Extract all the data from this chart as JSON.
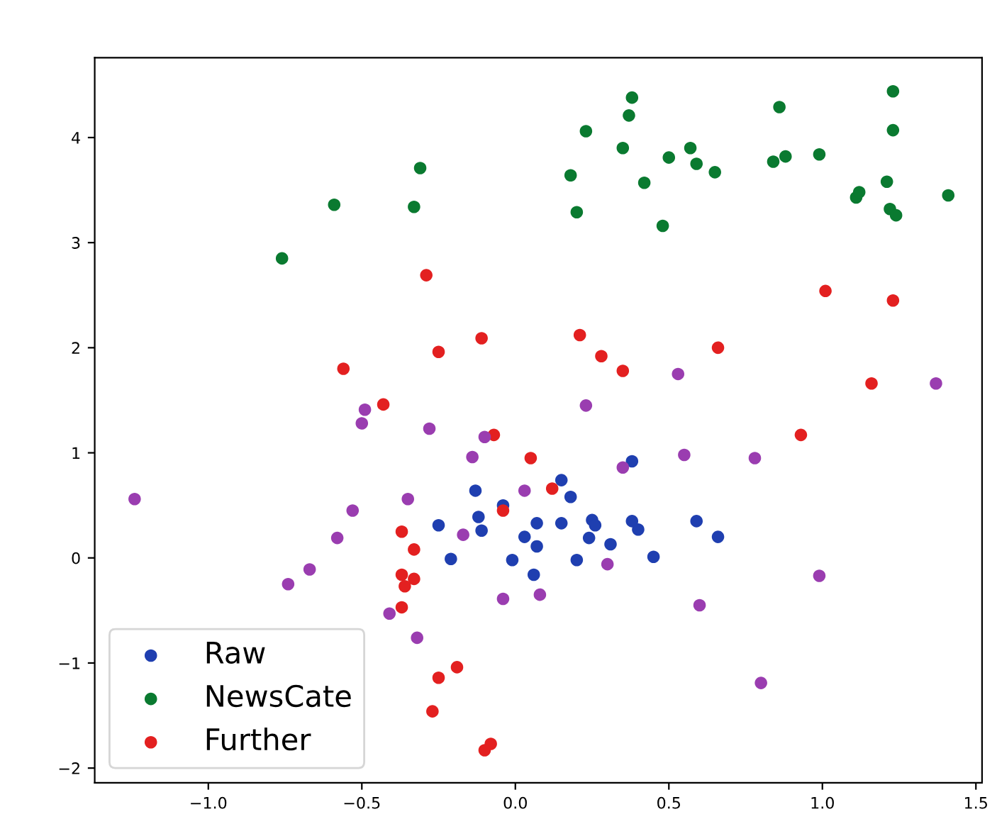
{
  "chart_data": {
    "type": "scatter",
    "marker": "circle",
    "legend": "bottom left",
    "grid": false,
    "xlim": [
      -1.37,
      1.52
    ],
    "ylim": [
      -2.14,
      4.76
    ],
    "xticks": [
      {
        "value": -1.0,
        "label": "−1.0"
      },
      {
        "value": -0.5,
        "label": "−0.5"
      },
      {
        "value": 0.0,
        "label": "0.0"
      },
      {
        "value": 0.5,
        "label": "0.5"
      },
      {
        "value": 1.0,
        "label": "1.0"
      },
      {
        "value": 1.5,
        "label": "1.5"
      }
    ],
    "yticks": [
      {
        "value": -2,
        "label": "−2"
      },
      {
        "value": -1,
        "label": "−1"
      },
      0,
      1,
      2,
      3,
      4
    ],
    "series": [
      {
        "name": "Raw",
        "color": "#1f3fb0",
        "x": [
          -0.13,
          -0.12,
          -0.11,
          -0.25,
          -0.21,
          -0.04,
          -0.01,
          0.03,
          0.07,
          0.07,
          0.06,
          0.15,
          0.15,
          0.18,
          0.2,
          0.25,
          0.26,
          0.24,
          0.31,
          0.38,
          0.38,
          0.4,
          0.45,
          0.59,
          0.66
        ],
        "values": [
          0.64,
          0.39,
          0.26,
          0.31,
          -0.01,
          0.5,
          -0.02,
          0.2,
          0.33,
          0.11,
          -0.16,
          0.74,
          0.33,
          0.58,
          -0.02,
          0.36,
          0.31,
          0.19,
          0.13,
          0.92,
          0.35,
          0.27,
          0.01,
          0.35,
          0.2
        ]
      },
      {
        "name": "NewsCate",
        "color": "#0a7a30",
        "x": [
          -0.76,
          -0.59,
          -0.31,
          -0.33,
          0.18,
          0.23,
          0.2,
          0.38,
          0.37,
          0.35,
          0.42,
          0.48,
          0.5,
          0.57,
          0.59,
          0.65,
          0.86,
          0.84,
          0.88,
          0.99,
          1.11,
          1.12,
          1.21,
          1.23,
          1.23,
          1.22,
          1.24,
          1.41
        ],
        "values": [
          2.85,
          3.36,
          3.71,
          3.34,
          3.64,
          4.06,
          3.29,
          4.38,
          4.21,
          3.9,
          3.57,
          3.16,
          3.81,
          3.9,
          3.75,
          3.67,
          4.29,
          3.77,
          3.82,
          3.84,
          3.43,
          3.48,
          3.58,
          4.44,
          4.07,
          3.32,
          3.26,
          3.45
        ]
      },
      {
        "name": "Further",
        "color": "#e32020",
        "x": [
          -0.29,
          -0.56,
          -0.43,
          -0.25,
          -0.11,
          0.21,
          0.28,
          0.35,
          0.66,
          1.01,
          1.23,
          1.16,
          -0.07,
          0.05,
          0.12,
          -0.04,
          -0.37,
          -0.33,
          -0.37,
          -0.36,
          -0.33,
          -0.37,
          -0.25,
          -0.19,
          -0.27,
          -0.08,
          -0.1,
          0.93
        ],
        "values": [
          2.69,
          1.8,
          1.46,
          1.96,
          2.09,
          2.12,
          1.92,
          1.78,
          2.0,
          2.54,
          2.45,
          1.66,
          1.17,
          0.95,
          0.66,
          0.45,
          0.25,
          0.08,
          -0.16,
          -0.27,
          -0.2,
          -0.47,
          -1.14,
          -1.04,
          -1.46,
          -1.77,
          -1.83,
          1.17
        ]
      },
      {
        "color": "#9a3db0",
        "x": [
          0.53,
          0.23,
          1.37,
          -1.24,
          -0.49,
          -0.5,
          -0.28,
          -0.1,
          -0.14,
          -0.35,
          -0.53,
          -0.58,
          -0.67,
          -0.74,
          -0.41,
          -0.32,
          -0.17,
          -0.04,
          0.08,
          0.03,
          0.3,
          0.35,
          0.55,
          0.78,
          0.6,
          0.99,
          0.8
        ],
        "values": [
          1.75,
          1.45,
          1.66,
          0.56,
          1.41,
          1.28,
          1.23,
          1.15,
          0.96,
          0.56,
          0.45,
          0.19,
          -0.11,
          -0.25,
          -0.53,
          -0.76,
          0.22,
          -0.39,
          -0.35,
          0.64,
          -0.06,
          0.86,
          0.98,
          0.95,
          -0.45,
          -0.17,
          -1.19
        ]
      }
    ]
  }
}
